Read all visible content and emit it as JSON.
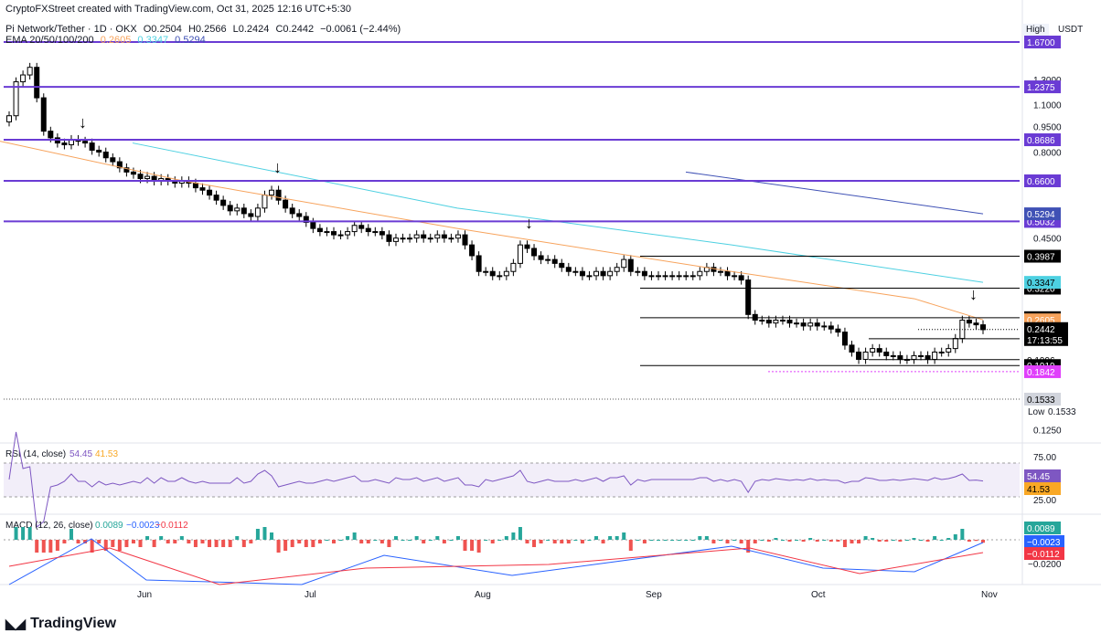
{
  "attribution": "CryptoFXStreet created with TradingView.com, Oct 31, 2025 12:16 UTC+5:30",
  "symbol_line": {
    "name": "Pi Network/Tether · 1D · OKX",
    "open": "O0.2504",
    "high": "H0.2566",
    "low": "L0.2424",
    "close": "C0.2442",
    "change": "−0.0061 (−2.44%)"
  },
  "ema_line": {
    "label": "EMA 20/50/100/200",
    "v1": "0.2605",
    "v2": "0.3347",
    "v3": "0.5294",
    "c1": "#f7a35c",
    "c2": "#4dd0e1",
    "c3": "#3f51b5"
  },
  "top_right": {
    "high_label": "High",
    "currency": "USDT"
  },
  "logo_text": "TradingView",
  "colors": {
    "up": "#ffffff",
    "down": "#000000",
    "purple": "#6a3bd4",
    "pink": "#e040fb",
    "grid": "#e0e3eb"
  },
  "chart_data": {
    "type": "candlestick",
    "price_axis_ticks": [
      "1.3000",
      "1.1000",
      "0.9500",
      "0.8000",
      "0.4500",
      "0.1250"
    ],
    "price_axis_tick_values": [
      1.3,
      1.1,
      0.95,
      0.8,
      0.45,
      0.125
    ],
    "x_tick_labels": [
      "Jun",
      "Jul",
      "Aug",
      "Sep",
      "Oct",
      "Nov"
    ],
    "horizontal_levels": [
      {
        "label": "1.6700",
        "value": 1.67,
        "color": "#6a3bd4",
        "style": "purple-box"
      },
      {
        "label": "1.2375",
        "value": 1.2375,
        "color": "#6a3bd4",
        "style": "purple-box"
      },
      {
        "label": "0.8686",
        "value": 0.8686,
        "color": "#6a3bd4",
        "style": "purple-box"
      },
      {
        "label": "0.6600",
        "value": 0.66,
        "color": "#6a3bd4",
        "style": "purple-box"
      },
      {
        "label": "0.5032",
        "value": 0.5032,
        "color": "#6a3bd4",
        "style": "purple-box"
      },
      {
        "label": "0.3987",
        "value": 0.3987,
        "color": "#000000",
        "style": "black-box"
      },
      {
        "label": "0.3220",
        "value": 0.322,
        "color": "#000000",
        "style": "black-box"
      },
      {
        "label": "0.2643",
        "value": 0.2643,
        "color": "#000000",
        "style": "black-box"
      },
      {
        "label": "0.2295",
        "value": 0.2295,
        "color": "#000000",
        "style": "plain"
      },
      {
        "label": "0.1996",
        "value": 0.1996,
        "color": "#000000",
        "style": "plain"
      },
      {
        "label": "0.1919",
        "value": 0.1919,
        "color": "#000000",
        "style": "black-box"
      },
      {
        "label": "0.1842",
        "value": 0.1842,
        "color": "#e040fb",
        "style": "pink-box"
      },
      {
        "label": "0.1533",
        "value": 0.1533,
        "color": "#9e9e9e",
        "style": "grey-box"
      }
    ],
    "ema_tags": [
      {
        "label": "0.5294",
        "value": 0.5294,
        "color": "#3f51b5"
      },
      {
        "label": "0.3347",
        "value": 0.3347,
        "color": "#4dd0e1"
      },
      {
        "label": "0.2605",
        "value": 0.2605,
        "color": "#f7a35c"
      }
    ],
    "last_price": {
      "label": "0.2442",
      "countdown": "17:13:55",
      "value": 0.2442
    },
    "low_marker": {
      "label": "Low",
      "value_label": "0.1533"
    },
    "candles_close": [
      1.02,
      1.28,
      1.34,
      1.41,
      1.15,
      0.92,
      0.88,
      0.85,
      0.84,
      0.87,
      0.86,
      0.85,
      0.81,
      0.8,
      0.77,
      0.75,
      0.72,
      0.7,
      0.69,
      0.67,
      0.68,
      0.66,
      0.67,
      0.66,
      0.65,
      0.66,
      0.65,
      0.63,
      0.62,
      0.6,
      0.58,
      0.56,
      0.54,
      0.55,
      0.53,
      0.52,
      0.55,
      0.6,
      0.62,
      0.58,
      0.55,
      0.53,
      0.52,
      0.5,
      0.48,
      0.47,
      0.47,
      0.46,
      0.46,
      0.47,
      0.49,
      0.48,
      0.47,
      0.47,
      0.46,
      0.44,
      0.45,
      0.45,
      0.45,
      0.46,
      0.45,
      0.45,
      0.46,
      0.45,
      0.45,
      0.46,
      0.43,
      0.4,
      0.36,
      0.36,
      0.35,
      0.35,
      0.36,
      0.38,
      0.43,
      0.42,
      0.4,
      0.39,
      0.39,
      0.38,
      0.37,
      0.36,
      0.36,
      0.35,
      0.35,
      0.36,
      0.35,
      0.36,
      0.37,
      0.39,
      0.36,
      0.36,
      0.35,
      0.35,
      0.35,
      0.35,
      0.35,
      0.35,
      0.35,
      0.35,
      0.36,
      0.37,
      0.36,
      0.36,
      0.35,
      0.35,
      0.34,
      0.27,
      0.26,
      0.26,
      0.255,
      0.26,
      0.26,
      0.255,
      0.255,
      0.25,
      0.255,
      0.25,
      0.25,
      0.245,
      0.24,
      0.22,
      0.21,
      0.2,
      0.21,
      0.215,
      0.21,
      0.205,
      0.205,
      0.2,
      0.2,
      0.205,
      0.205,
      0.2,
      0.21,
      0.21,
      0.215,
      0.23,
      0.26,
      0.255,
      0.252,
      0.244
    ],
    "rsi": {
      "label": "RSI (14, close)",
      "value": "54.45",
      "ma": "41.53",
      "levels": [
        "75.00",
        "25.00"
      ],
      "value_color": "#7e57c2",
      "ma_color": "#f9a825"
    },
    "macd": {
      "label": "MACD (12, 26, close)",
      "hist": "0.0089",
      "macd": "−0.0023",
      "signal": "−0.0112",
      "axis_tick": "−0.0200",
      "macd_color": "#2962ff",
      "signal_color": "#f23645"
    }
  }
}
